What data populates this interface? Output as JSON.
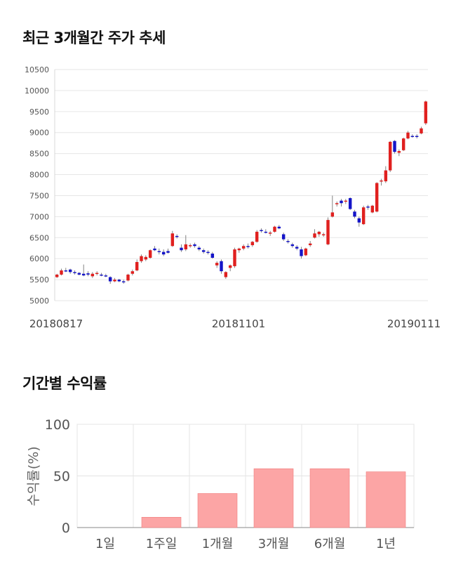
{
  "sections": {
    "price_trend_title": "최근 3개월간 주가 추세",
    "returns_title": "기간별 수익률"
  },
  "colors": {
    "up": "#e0201f",
    "down": "#1414c8",
    "bar": "#fca5a5",
    "bar_stroke": "#f07d7d",
    "grid": "#e6e6e6"
  },
  "chart_data": [
    {
      "type": "candlestick",
      "title": "최근 3개월간 주가 추세",
      "ylim": [
        5000,
        10500
      ],
      "yticks": [
        5000,
        5500,
        6000,
        6500,
        7000,
        7500,
        8000,
        8500,
        9000,
        9500,
        10000,
        10500
      ],
      "x_labels": [
        "20180817",
        "20181101",
        "20190111"
      ],
      "grid": true,
      "ohlc": [
        [
          5560,
          5640,
          5540,
          5620
        ],
        [
          5620,
          5760,
          5600,
          5720
        ],
        [
          5720,
          5780,
          5680,
          5700
        ],
        [
          5740,
          5760,
          5640,
          5680
        ],
        [
          5680,
          5720,
          5620,
          5660
        ],
        [
          5660,
          5680,
          5600,
          5620
        ],
        [
          5640,
          5860,
          5580,
          5600
        ],
        [
          5650,
          5700,
          5580,
          5620
        ],
        [
          5580,
          5680,
          5540,
          5640
        ],
        [
          5640,
          5700,
          5600,
          5660
        ],
        [
          5620,
          5660,
          5580,
          5600
        ],
        [
          5600,
          5640,
          5560,
          5580
        ],
        [
          5560,
          5580,
          5400,
          5460
        ],
        [
          5460,
          5540,
          5440,
          5500
        ],
        [
          5500,
          5520,
          5440,
          5460
        ],
        [
          5460,
          5500,
          5400,
          5440
        ],
        [
          5480,
          5640,
          5460,
          5620
        ],
        [
          5640,
          5740,
          5600,
          5700
        ],
        [
          5720,
          5980,
          5700,
          5920
        ],
        [
          5940,
          6100,
          5900,
          6060
        ],
        [
          5980,
          6080,
          5940,
          6040
        ],
        [
          6020,
          6220,
          6000,
          6200
        ],
        [
          6240,
          6300,
          6180,
          6200
        ],
        [
          6180,
          6240,
          6100,
          6160
        ],
        [
          6160,
          6220,
          6060,
          6100
        ],
        [
          6180,
          6240,
          6120,
          6140
        ],
        [
          6300,
          6660,
          6280,
          6600
        ],
        [
          6540,
          6580,
          6480,
          6520
        ],
        [
          6260,
          6340,
          6160,
          6200
        ],
        [
          6220,
          6560,
          6180,
          6340
        ],
        [
          6300,
          6360,
          6260,
          6320
        ],
        [
          6340,
          6380,
          6260,
          6300
        ],
        [
          6260,
          6300,
          6180,
          6220
        ],
        [
          6200,
          6240,
          6120,
          6160
        ],
        [
          6160,
          6200,
          6100,
          6140
        ],
        [
          6120,
          6160,
          6000,
          6020
        ],
        [
          5840,
          5940,
          5780,
          5900
        ],
        [
          5940,
          5980,
          5640,
          5700
        ],
        [
          5560,
          5700,
          5520,
          5680
        ],
        [
          5780,
          5860,
          5700,
          5840
        ],
        [
          5820,
          6260,
          5780,
          6220
        ],
        [
          6200,
          6260,
          6140,
          6240
        ],
        [
          6240,
          6340,
          6200,
          6300
        ],
        [
          6300,
          6360,
          6240,
          6280
        ],
        [
          6320,
          6420,
          6280,
          6400
        ],
        [
          6400,
          6680,
          6380,
          6640
        ],
        [
          6680,
          6720,
          6620,
          6660
        ],
        [
          6640,
          6700,
          6600,
          6620
        ],
        [
          6600,
          6660,
          6540,
          6620
        ],
        [
          6640,
          6780,
          6620,
          6760
        ],
        [
          6760,
          6800,
          6700,
          6720
        ],
        [
          6580,
          6620,
          6420,
          6460
        ],
        [
          6420,
          6460,
          6360,
          6400
        ],
        [
          6340,
          6380,
          6260,
          6300
        ],
        [
          6280,
          6320,
          6200,
          6240
        ],
        [
          6220,
          6280,
          6000,
          6060
        ],
        [
          6080,
          6260,
          6060,
          6240
        ],
        [
          6320,
          6420,
          6280,
          6360
        ],
        [
          6500,
          6700,
          6480,
          6600
        ],
        [
          6580,
          6660,
          6520,
          6640
        ],
        [
          6580,
          6620,
          6520,
          6580
        ],
        [
          6340,
          6980,
          6320,
          6920
        ],
        [
          7000,
          7500,
          6980,
          7100
        ],
        [
          7300,
          7360,
          7240,
          7320
        ],
        [
          7380,
          7420,
          7240,
          7320
        ],
        [
          7360,
          7420,
          7300,
          7380
        ],
        [
          7440,
          7460,
          7160,
          7180
        ],
        [
          7120,
          7160,
          6960,
          7000
        ],
        [
          6960,
          7000,
          6760,
          6860
        ],
        [
          6820,
          7260,
          6800,
          7220
        ],
        [
          7240,
          7280,
          7160,
          7220
        ],
        [
          7100,
          7280,
          7080,
          7260
        ],
        [
          7120,
          7820,
          7100,
          7800
        ],
        [
          7840,
          7900,
          7740,
          7860
        ],
        [
          7840,
          8200,
          7800,
          8100
        ],
        [
          8100,
          8800,
          8060,
          8780
        ],
        [
          8800,
          8820,
          8500,
          8540
        ],
        [
          8520,
          8600,
          8440,
          8560
        ],
        [
          8580,
          8880,
          8560,
          8860
        ],
        [
          8860,
          9040,
          8840,
          9000
        ],
        [
          8920,
          8960,
          8880,
          8900
        ],
        [
          8920,
          8960,
          8860,
          8900
        ],
        [
          8980,
          9140,
          8960,
          9100
        ],
        [
          9220,
          9760,
          9180,
          9740
        ]
      ]
    },
    {
      "type": "bar",
      "title": "기간별 수익률",
      "categories": [
        "1일",
        "1주일",
        "1개월",
        "3개월",
        "6개월",
        "1년"
      ],
      "values": [
        0,
        10,
        33,
        57,
        57,
        54
      ],
      "ylabel": "수익률(%)",
      "ylim": [
        0,
        100
      ],
      "yticks": [
        0,
        50,
        100
      ],
      "grid": true
    }
  ]
}
